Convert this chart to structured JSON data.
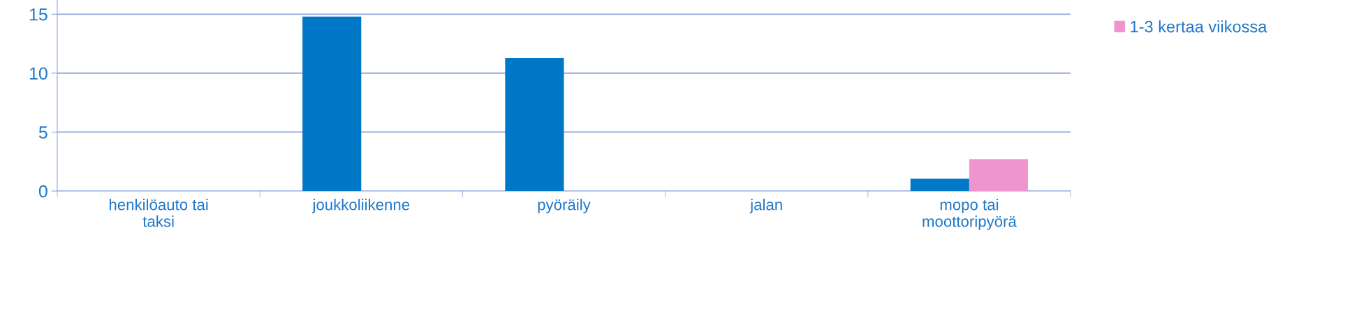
{
  "chart_data": {
    "type": "bar",
    "categories": [
      "henkilöauto tai\ntaksi",
      "joukkoliikenne",
      "pyöräily",
      "jalan",
      "mopo tai\nmoottoripyörä"
    ],
    "series": [
      {
        "color": "#0078c8",
        "values": [
          null,
          14.8,
          11.3,
          null,
          1.05
        ]
      },
      {
        "name": "1-3 kertaa viikossa",
        "color": "#ef94cf",
        "values": [
          null,
          null,
          null,
          null,
          2.7
        ]
      }
    ],
    "ylim": [
      0,
      16.2
    ],
    "yticks": [
      0,
      5,
      10,
      15
    ],
    "grid": "y",
    "legend": "right"
  }
}
